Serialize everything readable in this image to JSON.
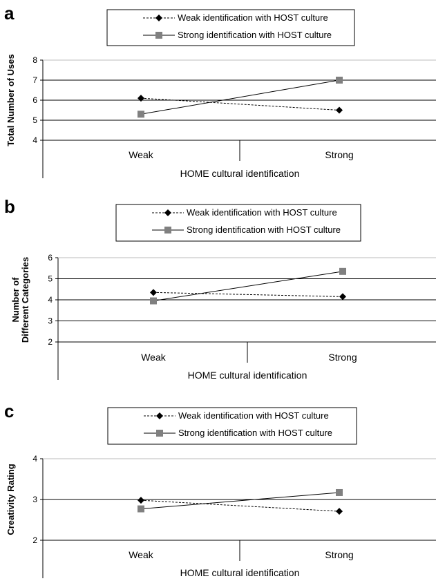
{
  "legend": {
    "weak_label": "Weak identification with HOST culture",
    "strong_label": "Strong identification with HOST culture"
  },
  "colors": {
    "weak_series": "#000000",
    "strong_series": "#808080",
    "grid": "#000000"
  },
  "chart_data": [
    {
      "panel": "a",
      "type": "line",
      "categories": [
        "Weak",
        "Strong"
      ],
      "xlabel": "HOME cultural identification",
      "ylabel": "Total Number of Uses",
      "ylim": [
        4,
        8
      ],
      "yticks": [
        4,
        5,
        6,
        7,
        8
      ],
      "series": [
        {
          "name": "Weak identification with HOST culture",
          "values": [
            6.1,
            5.5
          ],
          "style": "dashed",
          "marker": "diamond"
        },
        {
          "name": "Strong identification with HOST culture",
          "values": [
            5.3,
            7.0
          ],
          "style": "solid",
          "marker": "square"
        }
      ]
    },
    {
      "panel": "b",
      "type": "line",
      "categories": [
        "Weak",
        "Strong"
      ],
      "xlabel": "HOME cultural identification",
      "ylabel": "Number of Different Categories",
      "ylim": [
        2,
        6
      ],
      "yticks": [
        2,
        3,
        4,
        5,
        6
      ],
      "series": [
        {
          "name": "Weak identification with HOST culture",
          "values": [
            4.35,
            4.15
          ],
          "style": "dashed",
          "marker": "diamond"
        },
        {
          "name": "Strong identification with HOST culture",
          "values": [
            3.95,
            5.35
          ],
          "style": "solid",
          "marker": "square"
        }
      ]
    },
    {
      "panel": "c",
      "type": "line",
      "categories": [
        "Weak",
        "Strong"
      ],
      "xlabel": "HOME cultural identification",
      "ylabel": "Creativity Rating",
      "ylim": [
        2,
        4
      ],
      "yticks": [
        2,
        3,
        4
      ],
      "series": [
        {
          "name": "Weak identification with HOST culture",
          "values": [
            2.98,
            2.71
          ],
          "style": "dashed",
          "marker": "diamond"
        },
        {
          "name": "Strong identification with HOST culture",
          "values": [
            2.77,
            3.17
          ],
          "style": "solid",
          "marker": "square"
        }
      ]
    }
  ]
}
